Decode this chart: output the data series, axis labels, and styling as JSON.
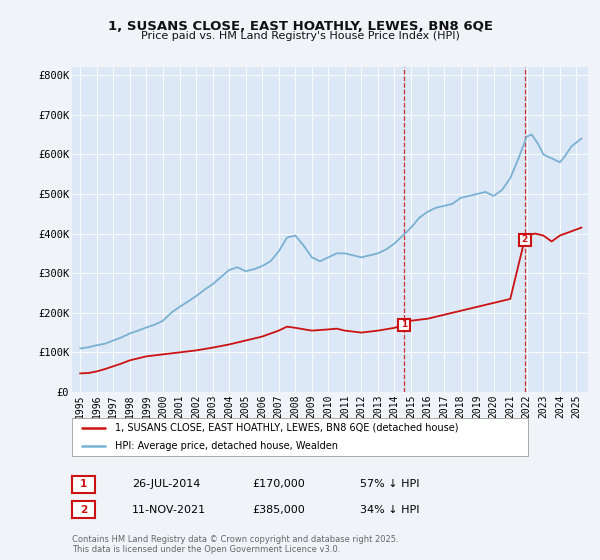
{
  "title1": "1, SUSANS CLOSE, EAST HOATHLY, LEWES, BN8 6QE",
  "title2": "Price paid vs. HM Land Registry's House Price Index (HPI)",
  "ylabel_ticks": [
    "£0",
    "£100K",
    "£200K",
    "£300K",
    "£400K",
    "£500K",
    "£600K",
    "£700K",
    "£800K"
  ],
  "ytick_values": [
    0,
    100000,
    200000,
    300000,
    400000,
    500000,
    600000,
    700000,
    800000
  ],
  "ylim": [
    0,
    820000
  ],
  "xlim_start": 1994.5,
  "xlim_end": 2025.7,
  "background_color": "#f0f4f8",
  "plot_bg_color": "#dce8f5",
  "line1_color": "#cc1111",
  "line2_color": "#7ab0d4",
  "legend_label1": "1, SUSANS CLOSE, EAST HOATHLY, LEWES, BN8 6QE (detached house)",
  "legend_label2": "HPI: Average price, detached house, Wealden",
  "marker1_date": 2014.57,
  "marker1_price": 170000,
  "marker1_label": "1",
  "marker1_text": "26-JUL-2014",
  "marker1_price_text": "£170,000",
  "marker1_hpi_text": "57% ↓ HPI",
  "marker2_date": 2021.87,
  "marker2_price": 385000,
  "marker2_label": "2",
  "marker2_text": "11-NOV-2021",
  "marker2_price_text": "£385,000",
  "marker2_hpi_text": "34% ↓ HPI",
  "footnote": "Contains HM Land Registry data © Crown copyright and database right 2025.\nThis data is licensed under the Open Government Licence v3.0.",
  "xtick_years": [
    1995,
    1996,
    1997,
    1998,
    1999,
    2000,
    2001,
    2002,
    2003,
    2004,
    2005,
    2006,
    2007,
    2008,
    2009,
    2010,
    2011,
    2012,
    2013,
    2014,
    2015,
    2016,
    2017,
    2018,
    2019,
    2020,
    2021,
    2022,
    2023,
    2024,
    2025
  ],
  "hpi_x": [
    1995,
    1995.5,
    1996,
    1996.5,
    1997,
    1997.5,
    1998,
    1998.5,
    1999,
    1999.5,
    2000,
    2000.5,
    2001,
    2001.5,
    2002,
    2002.5,
    2003,
    2003.5,
    2004,
    2004.5,
    2005,
    2005.5,
    2006,
    2006.5,
    2007,
    2007.5,
    2008,
    2008.5,
    2009,
    2009.5,
    2010,
    2010.5,
    2011,
    2011.5,
    2012,
    2012.5,
    2013,
    2013.5,
    2014,
    2014.5,
    2015,
    2015.5,
    2016,
    2016.5,
    2017,
    2017.5,
    2018,
    2018.5,
    2019,
    2019.5,
    2020,
    2020.5,
    2021,
    2021.5,
    2022,
    2022.3,
    2022.7,
    2023,
    2023.5,
    2024,
    2024.3,
    2024.7,
    2025.3
  ],
  "hpi_y": [
    110000,
    113000,
    118000,
    122000,
    130000,
    138000,
    148000,
    155000,
    163000,
    170000,
    180000,
    200000,
    215000,
    228000,
    242000,
    258000,
    272000,
    290000,
    308000,
    315000,
    305000,
    310000,
    318000,
    330000,
    355000,
    390000,
    395000,
    370000,
    340000,
    330000,
    340000,
    350000,
    350000,
    345000,
    340000,
    345000,
    350000,
    360000,
    375000,
    395000,
    415000,
    440000,
    455000,
    465000,
    470000,
    475000,
    490000,
    495000,
    500000,
    505000,
    495000,
    510000,
    540000,
    590000,
    645000,
    650000,
    625000,
    600000,
    590000,
    580000,
    595000,
    620000,
    640000
  ],
  "prop_x": [
    1995,
    1995.5,
    1996,
    1996.5,
    1997,
    1997.5,
    1998,
    1998.5,
    1999,
    2000,
    2001,
    2002,
    2003,
    2004,
    2005,
    2006,
    2007,
    2007.5,
    2008,
    2009,
    2010,
    2010.5,
    2011,
    2012,
    2013,
    2014,
    2014.57,
    2015,
    2016,
    2017,
    2018,
    2019,
    2020,
    2021,
    2021.87,
    2022,
    2022.5,
    2023,
    2023.5,
    2024,
    2025.3
  ],
  "prop_y": [
    47000,
    48000,
    52000,
    58000,
    65000,
    72000,
    80000,
    85000,
    90000,
    95000,
    100000,
    105000,
    112000,
    120000,
    130000,
    140000,
    155000,
    165000,
    162000,
    155000,
    158000,
    160000,
    155000,
    150000,
    155000,
    162000,
    170000,
    180000,
    185000,
    195000,
    205000,
    215000,
    225000,
    235000,
    385000,
    395000,
    400000,
    395000,
    380000,
    395000,
    415000
  ]
}
